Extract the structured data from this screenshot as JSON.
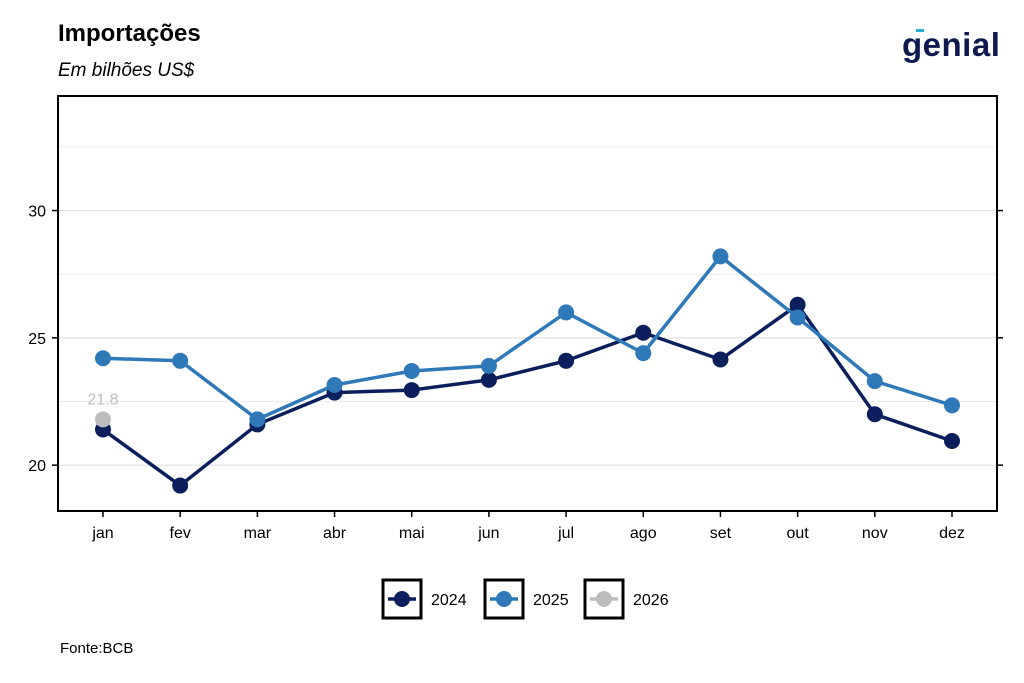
{
  "header": {
    "title": "Importações",
    "subtitle": "Em bilhões US$",
    "logo": "genial"
  },
  "footer": {
    "source": "Fonte:BCB"
  },
  "colors": {
    "2024": "#0b1f5c",
    "2025": "#2f79b9",
    "2026": "#bdbdbd"
  },
  "chart_data": {
    "type": "line",
    "title": "Importações",
    "subtitle": "Em bilhões US$",
    "xlabel": "",
    "ylabel": "",
    "categories": [
      "jan",
      "fev",
      "mar",
      "abr",
      "mai",
      "jun",
      "jul",
      "ago",
      "set",
      "out",
      "nov",
      "dez"
    ],
    "yticks": [
      20,
      25,
      30
    ],
    "ylim": [
      18.2,
      34.5
    ],
    "grid": "horizontal",
    "legend_position": "bottom",
    "series": [
      {
        "name": "2024",
        "values": [
          21.4,
          19.2,
          21.6,
          22.85,
          22.95,
          23.35,
          24.1,
          25.2,
          24.15,
          26.3,
          22.0,
          20.95
        ]
      },
      {
        "name": "2025",
        "values": [
          24.2,
          24.1,
          21.8,
          23.15,
          23.7,
          23.9,
          26.0,
          24.4,
          28.2,
          25.8,
          23.3,
          22.35
        ]
      },
      {
        "name": "2026",
        "values": [
          21.8,
          null,
          null,
          null,
          null,
          null,
          null,
          null,
          null,
          null,
          null,
          null
        ]
      }
    ],
    "annotations": [
      {
        "series": "2026",
        "category": "jan",
        "text": "21.8"
      }
    ]
  }
}
